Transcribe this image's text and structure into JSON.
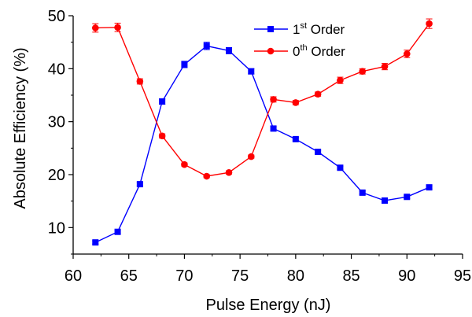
{
  "chart_data": {
    "type": "line",
    "xlabel": "Pulse Energy (nJ)",
    "ylabel": "Absolute Efficiency (%)",
    "xlim": [
      60,
      95
    ],
    "ylim": [
      5,
      50
    ],
    "x_ticks": [
      60,
      65,
      70,
      75,
      80,
      85,
      90,
      95
    ],
    "y_ticks": [
      10,
      20,
      30,
      40,
      50
    ],
    "grid": false,
    "legend_position": "top-right",
    "x": [
      62,
      64,
      66,
      68,
      70,
      72,
      74,
      76,
      78,
      80,
      82,
      84,
      86,
      88,
      90,
      92
    ],
    "series": [
      {
        "name_main": "1",
        "name_sup": "st",
        "name_rest": " Order",
        "color": "#0000ff",
        "marker": "square",
        "values": [
          7.2,
          9.2,
          18.2,
          33.8,
          40.8,
          44.3,
          43.4,
          39.5,
          28.7,
          26.7,
          24.3,
          21.3,
          16.6,
          15.1,
          15.8,
          17.6
        ],
        "errors": [
          0.3,
          0.3,
          0.3,
          0.5,
          0.6,
          0.7,
          0.6,
          0.5,
          0.4,
          0.3,
          0.3,
          0.3,
          0.3,
          0.3,
          0.3,
          0.3
        ]
      },
      {
        "name_main": "0",
        "name_sup": "th",
        "name_rest": " Order",
        "color": "#ff0000",
        "marker": "circle",
        "values": [
          47.7,
          47.8,
          37.6,
          27.3,
          21.9,
          19.7,
          20.4,
          23.4,
          34.2,
          33.6,
          35.2,
          37.8,
          39.5,
          40.4,
          42.8,
          48.5
        ],
        "errors": [
          0.8,
          0.8,
          0.5,
          0.4,
          0.3,
          0.3,
          0.3,
          0.3,
          0.5,
          0.4,
          0.4,
          0.6,
          0.5,
          0.6,
          0.7,
          0.9
        ]
      }
    ]
  }
}
